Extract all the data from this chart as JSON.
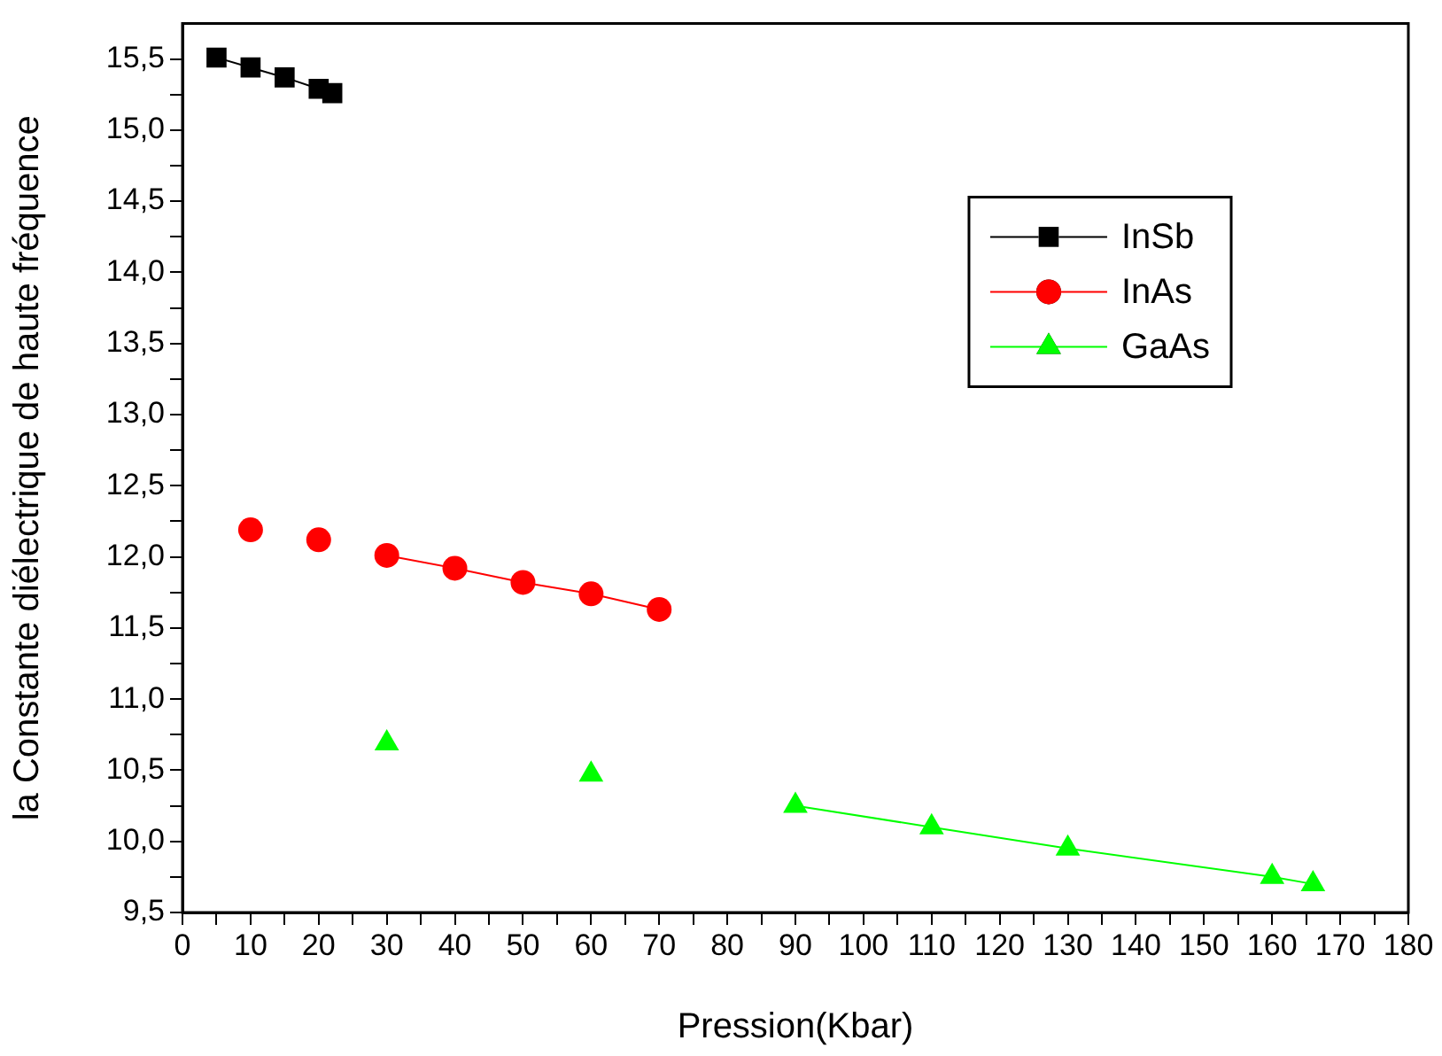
{
  "chart_data": {
    "type": "line",
    "xlabel": "Pression(Kbar)",
    "ylabel": "la Constante diélectrique de haute fréquence",
    "xlim": [
      0,
      180
    ],
    "xticks": [
      0,
      {
        "value": 5,
        "label": null
      },
      10,
      {
        "value": 15,
        "label": null
      },
      20,
      {
        "value": 25,
        "label": null
      },
      30,
      {
        "value": 35,
        "label": null
      },
      40,
      {
        "value": 45,
        "label": null
      },
      50,
      {
        "value": 55,
        "label": null
      },
      60,
      {
        "value": 65,
        "label": null
      },
      70,
      {
        "value": 75,
        "label": null
      },
      80,
      {
        "value": 85,
        "label": null
      },
      90,
      {
        "value": 95,
        "label": null
      },
      100,
      {
        "value": 105,
        "label": null
      },
      110,
      {
        "value": 115,
        "label": null
      },
      120,
      {
        "value": 125,
        "label": null
      },
      130,
      {
        "value": 135,
        "label": null
      },
      140,
      {
        "value": 145,
        "label": null
      },
      150,
      {
        "value": 155,
        "label": null
      },
      160,
      {
        "value": 165,
        "label": null
      },
      170,
      {
        "value": 175,
        "label": null
      },
      180
    ],
    "ylim": [
      9.5,
      15.75
    ],
    "yticks": [
      {
        "value": 9.5,
        "label": "9,5"
      },
      {
        "value": 9.75,
        "label": null
      },
      {
        "value": 10,
        "label": "10,0"
      },
      {
        "value": 10.25,
        "label": null
      },
      {
        "value": 10.5,
        "label": "10,5"
      },
      {
        "value": 10.75,
        "label": null
      },
      {
        "value": 11,
        "label": "11,0"
      },
      {
        "value": 11.25,
        "label": null
      },
      {
        "value": 11.5,
        "label": "11,5"
      },
      {
        "value": 11.75,
        "label": null
      },
      {
        "value": 12,
        "label": "12,0"
      },
      {
        "value": 12.25,
        "label": null
      },
      {
        "value": 12.5,
        "label": "12,5"
      },
      {
        "value": 12.75,
        "label": null
      },
      {
        "value": 13,
        "label": "13,0"
      },
      {
        "value": 13.25,
        "label": null
      },
      {
        "value": 13.5,
        "label": "13,5"
      },
      {
        "value": 13.75,
        "label": null
      },
      {
        "value": 14,
        "label": "14,0"
      },
      {
        "value": 14.25,
        "label": null
      },
      {
        "value": 14.5,
        "label": "14,5"
      },
      {
        "value": 14.75,
        "label": null
      },
      {
        "value": 15,
        "label": "15,0"
      },
      {
        "value": 15.25,
        "label": null
      },
      {
        "value": 15.5,
        "label": "15,5"
      }
    ],
    "grid": false,
    "legend": "top right",
    "series": [
      {
        "name": "InSb",
        "marker": "square",
        "color": "#000000",
        "x": [
          5,
          10,
          15,
          20,
          22
        ],
        "values": [
          15.51,
          15.44,
          15.37,
          15.29,
          15.26
        ]
      },
      {
        "name": "InAs",
        "marker": "circle",
        "color": "#ff0000",
        "x": [
          30,
          40,
          50,
          60,
          70
        ],
        "values": [
          12.01,
          11.92,
          11.82,
          11.74,
          11.63
        ]
      },
      {
        "type": "scatter",
        "marker": "circle",
        "color": "#ff0000",
        "x": [
          10,
          20
        ],
        "values": [
          12.19,
          12.12
        ]
      },
      {
        "name": "GaAs",
        "marker": "triangle",
        "color": "#00ff00",
        "x": [
          90,
          110,
          130,
          160,
          166
        ],
        "values": [
          10.25,
          10.1,
          9.95,
          9.75,
          9.7
        ]
      },
      {
        "type": "scatter",
        "marker": "triangle",
        "color": "#00ff00",
        "x": [
          30,
          60
        ],
        "values": [
          10.69,
          10.47
        ]
      }
    ]
  }
}
